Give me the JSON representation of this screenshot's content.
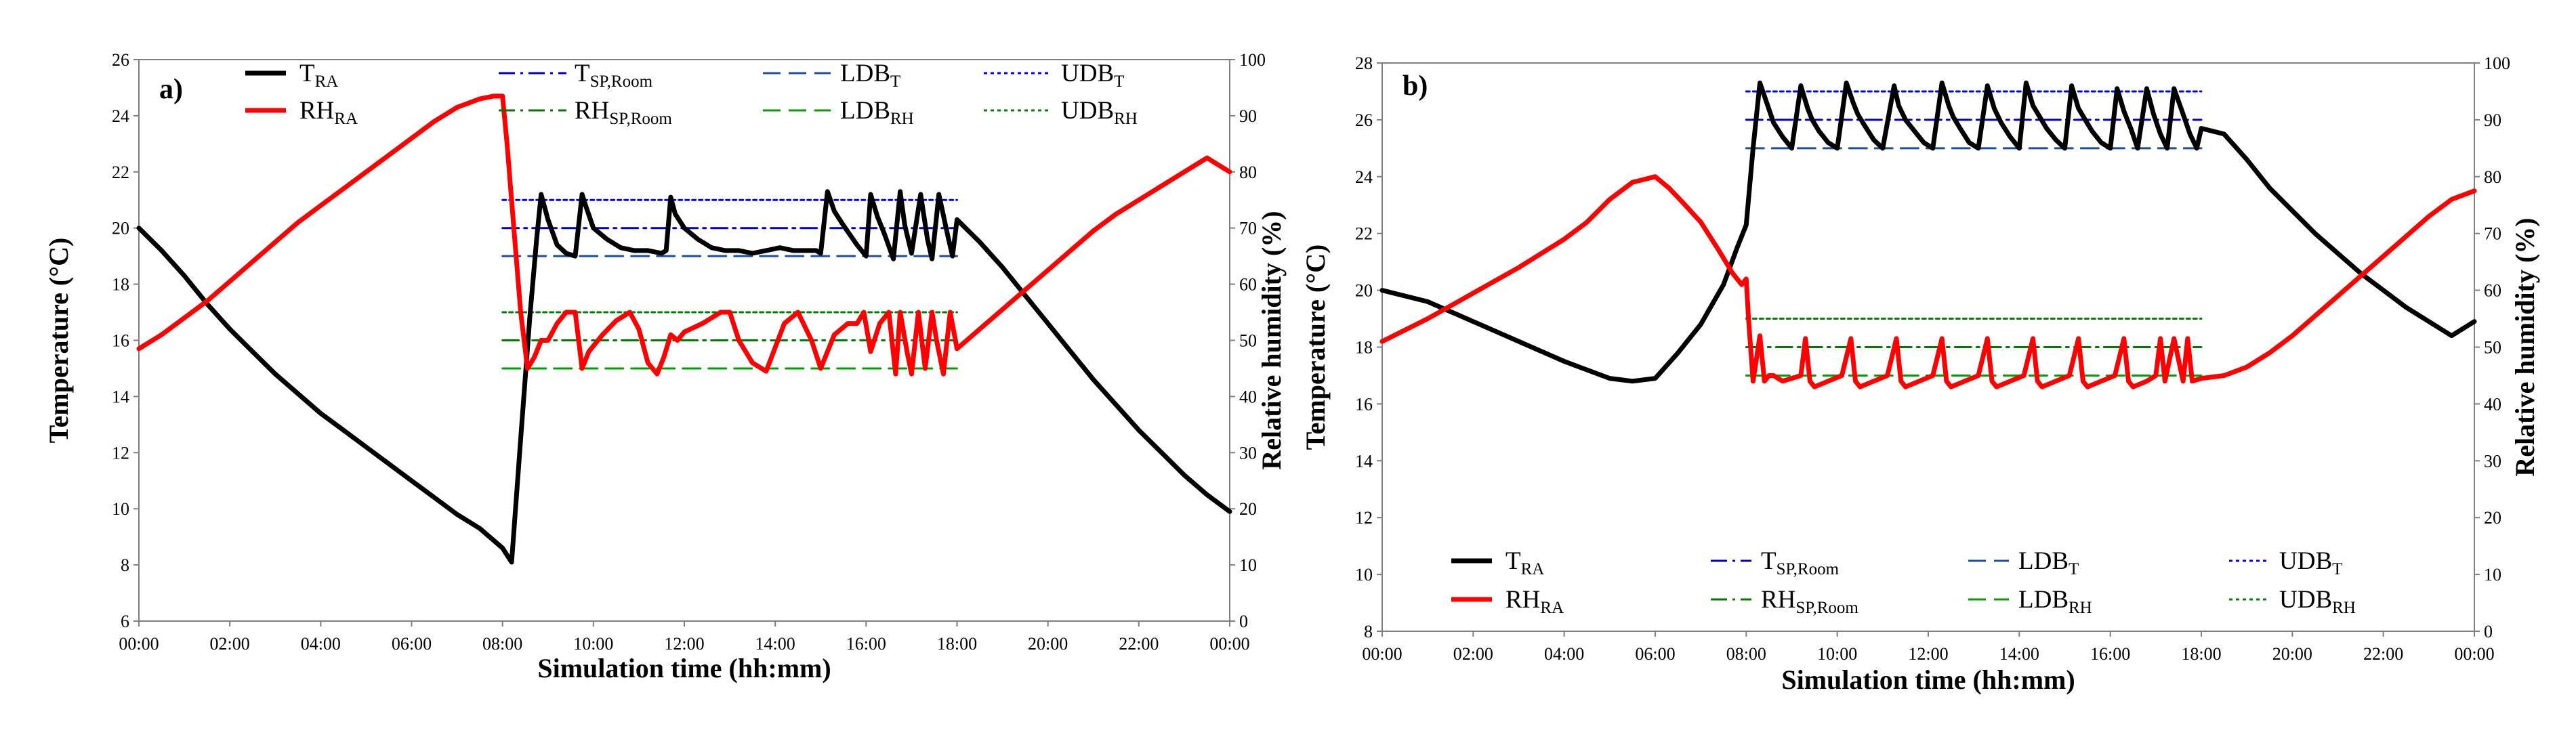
{
  "chart_data": [
    {
      "type": "line",
      "panel_label": "a)",
      "xlabel": "Simulation time (hh:mm)",
      "ylabel_left": "Temperature (°C)",
      "ylabel_right": "Relative humidity (%)",
      "xlim": [
        0,
        24
      ],
      "ylim_left": [
        6,
        26
      ],
      "ylim_right": [
        0,
        100
      ],
      "xticks": [
        0,
        2,
        4,
        6,
        8,
        10,
        12,
        14,
        16,
        18,
        20,
        22,
        24
      ],
      "xtick_labels": [
        "00:00",
        "02:00",
        "04:00",
        "06:00",
        "08:00",
        "10:00",
        "12:00",
        "14:00",
        "16:00",
        "18:00",
        "20:00",
        "22:00",
        "00:00"
      ],
      "yticks_left": [
        6,
        8,
        10,
        12,
        14,
        16,
        18,
        20,
        22,
        24,
        26
      ],
      "yticks_right": [
        0,
        10,
        20,
        30,
        40,
        50,
        60,
        70,
        80,
        90,
        100
      ],
      "grid": false,
      "legend": [
        {
          "key": "T_RA",
          "base": "T",
          "sub": "RA"
        },
        {
          "key": "RH_RA",
          "base": "RH",
          "sub": "RA"
        },
        {
          "key": "T_SP",
          "base": "T",
          "sub": "SP,Room"
        },
        {
          "key": "RH_SP",
          "base": "RH",
          "sub": "SP,Room"
        },
        {
          "key": "LDB_T",
          "base": "LDB",
          "sub": "T"
        },
        {
          "key": "LDB_RH",
          "base": "LDB",
          "sub": "RH"
        },
        {
          "key": "UDB_T",
          "base": "UDB",
          "sub": "T"
        },
        {
          "key": "UDB_RH",
          "base": "UDB",
          "sub": "RH"
        }
      ],
      "series": [
        {
          "name": "T_RA",
          "axis": "left",
          "color": "#000000",
          "x": [
            0,
            0.5,
            1,
            1.5,
            2,
            2.5,
            3,
            3.5,
            4,
            4.5,
            5,
            5.5,
            6,
            6.5,
            7,
            7.5,
            8,
            8.2,
            8.4,
            8.6,
            8.75,
            8.85,
            9.0,
            9.2,
            9.4,
            9.6,
            9.75,
            9.85,
            10.0,
            10.3,
            10.6,
            10.9,
            11.2,
            11.5,
            11.6,
            11.7,
            11.8,
            12.0,
            12.3,
            12.6,
            12.9,
            13.2,
            13.5,
            13.8,
            14.1,
            14.4,
            14.7,
            14.9,
            15.0,
            15.15,
            15.3,
            15.5,
            15.8,
            16.0,
            16.1,
            16.25,
            16.4,
            16.6,
            16.75,
            16.85,
            17.0,
            17.2,
            17.35,
            17.45,
            17.6,
            17.8,
            17.9,
            18.0,
            18.5,
            19,
            19.5,
            20,
            20.5,
            21,
            21.5,
            22,
            22.5,
            23,
            23.5,
            24
          ],
          "y": [
            20,
            19.2,
            18.3,
            17.3,
            16.4,
            15.6,
            14.8,
            14.1,
            13.4,
            12.8,
            12.2,
            11.6,
            11.0,
            10.4,
            9.8,
            9.3,
            8.6,
            8.1,
            12.5,
            16.8,
            19.6,
            21.2,
            20.3,
            19.4,
            19.1,
            19.0,
            21.2,
            20.7,
            20.0,
            19.6,
            19.3,
            19.2,
            19.2,
            19.1,
            19.2,
            21.1,
            20.5,
            20.0,
            19.6,
            19.3,
            19.2,
            19.2,
            19.1,
            19.2,
            19.3,
            19.2,
            19.2,
            19.2,
            19.1,
            21.3,
            20.6,
            20.1,
            19.4,
            19.0,
            21.2,
            20.4,
            19.8,
            18.9,
            21.3,
            20.1,
            19.1,
            21.2,
            19.6,
            18.9,
            21.2,
            19.7,
            19.0,
            20.3,
            19.5,
            18.6,
            17.6,
            16.6,
            15.6,
            14.6,
            13.7,
            12.8,
            12.0,
            11.2,
            10.5,
            9.9
          ]
        },
        {
          "name": "RH_RA",
          "axis": "right",
          "color": "#ff0000",
          "x": [
            0,
            0.5,
            1,
            1.5,
            2,
            2.5,
            3,
            3.5,
            4,
            4.5,
            5,
            5.5,
            6,
            6.5,
            7,
            7.5,
            7.8,
            8,
            8.1,
            8.25,
            8.4,
            8.55,
            8.7,
            8.85,
            9.0,
            9.2,
            9.4,
            9.6,
            9.75,
            9.9,
            10.2,
            10.5,
            10.8,
            11.0,
            11.2,
            11.4,
            11.55,
            11.7,
            11.85,
            12.0,
            12.4,
            12.8,
            13.0,
            13.2,
            13.5,
            13.8,
            14.2,
            14.5,
            14.8,
            15.0,
            15.3,
            15.6,
            15.8,
            15.95,
            16.1,
            16.3,
            16.5,
            16.65,
            16.75,
            16.9,
            17.0,
            17.15,
            17.3,
            17.45,
            17.55,
            17.7,
            17.85,
            18.0,
            18.5,
            19,
            19.5,
            20,
            20.5,
            21,
            21.5,
            22,
            22.5,
            23,
            23.5,
            24
          ],
          "y": [
            48.5,
            51,
            54,
            57,
            60.5,
            64,
            67.5,
            71,
            74,
            77,
            80,
            83,
            86,
            89,
            91.5,
            93,
            93.5,
            93.5,
            85,
            70,
            55,
            45,
            47,
            50,
            50,
            53,
            55,
            55,
            45,
            48,
            51,
            53.5,
            55,
            52,
            46,
            44,
            47,
            51,
            50,
            51.5,
            53,
            55,
            55,
            50,
            46,
            44.5,
            53,
            55,
            50,
            45,
            51,
            53,
            53,
            55,
            48,
            53,
            55,
            44,
            55,
            48,
            44,
            55,
            45,
            55,
            50,
            44,
            55,
            48.5,
            52,
            55.5,
            59,
            62.5,
            66,
            69.5,
            72.5,
            75,
            77.5,
            80,
            82.5,
            80
          ]
        },
        {
          "name": "T_SP",
          "axis": "left",
          "color": "#0000cc",
          "dash": "dashdot",
          "x": [
            8,
            18
          ],
          "y": [
            20,
            20
          ]
        },
        {
          "name": "LDB_T",
          "axis": "left",
          "color": "#1f4e9e",
          "dash": "dash",
          "x": [
            8,
            18
          ],
          "y": [
            19,
            19
          ]
        },
        {
          "name": "UDB_T",
          "axis": "left",
          "color": "#0000ff",
          "dash": "dot",
          "x": [
            8,
            18
          ],
          "y": [
            21,
            21
          ]
        },
        {
          "name": "RH_SP",
          "axis": "right",
          "color": "#007a00",
          "dash": "dashdot",
          "x": [
            8,
            18
          ],
          "y": [
            50,
            50
          ]
        },
        {
          "name": "LDB_RH",
          "axis": "right",
          "color": "#00a000",
          "dash": "dash",
          "x": [
            8,
            18
          ],
          "y": [
            45,
            45
          ]
        },
        {
          "name": "UDB_RH",
          "axis": "right",
          "color": "#008000",
          "dash": "dot",
          "x": [
            8,
            18
          ],
          "y": [
            55,
            55
          ]
        }
      ]
    },
    {
      "type": "line",
      "panel_label": "b)",
      "xlabel": "Simulation time (hh:mm)",
      "ylabel_left": "Temperature (°C)",
      "ylabel_right": "Relative humidity (%)",
      "xlim": [
        0,
        24
      ],
      "ylim_left": [
        8,
        28
      ],
      "ylim_right": [
        0,
        100
      ],
      "xticks": [
        0,
        2,
        4,
        6,
        8,
        10,
        12,
        14,
        16,
        18,
        20,
        22,
        24
      ],
      "xtick_labels": [
        "00:00",
        "02:00",
        "04:00",
        "06:00",
        "08:00",
        "10:00",
        "12:00",
        "14:00",
        "16:00",
        "18:00",
        "20:00",
        "22:00",
        "00:00"
      ],
      "yticks_left": [
        8,
        10,
        12,
        14,
        16,
        18,
        20,
        22,
        24,
        26,
        28
      ],
      "yticks_right": [
        0,
        10,
        20,
        30,
        40,
        50,
        60,
        70,
        80,
        90,
        100
      ],
      "grid": false,
      "legend": [
        {
          "key": "T_RA",
          "base": "T",
          "sub": "RA"
        },
        {
          "key": "RH_RA",
          "base": "RH",
          "sub": "RA"
        },
        {
          "key": "T_SP",
          "base": "T",
          "sub": "SP,Room"
        },
        {
          "key": "RH_SP",
          "base": "RH",
          "sub": "SP,Room"
        },
        {
          "key": "LDB_T",
          "base": "LDB",
          "sub": "T"
        },
        {
          "key": "LDB_RH",
          "base": "LDB",
          "sub": "RH"
        },
        {
          "key": "UDB_T",
          "base": "UDB",
          "sub": "T"
        },
        {
          "key": "UDB_RH",
          "base": "UDB",
          "sub": "RH"
        }
      ],
      "series": [
        {
          "name": "T_RA",
          "axis": "left",
          "color": "#000000",
          "x": [
            0,
            1,
            2,
            3,
            4,
            4.5,
            5,
            5.5,
            6,
            6.5,
            7,
            7.5,
            7.8,
            8,
            8.15,
            8.3,
            8.45,
            8.6,
            8.8,
            9.0,
            9.2,
            9.35,
            9.45,
            9.6,
            9.8,
            10.0,
            10.2,
            10.35,
            10.45,
            10.6,
            10.8,
            11.0,
            11.25,
            11.35,
            11.5,
            11.7,
            11.9,
            12.1,
            12.3,
            12.45,
            12.55,
            12.7,
            12.9,
            13.1,
            13.3,
            13.45,
            13.6,
            13.8,
            14.0,
            14.15,
            14.3,
            14.45,
            14.6,
            14.8,
            15.0,
            15.15,
            15.3,
            15.45,
            15.6,
            15.8,
            16.0,
            16.15,
            16.3,
            16.45,
            16.6,
            16.8,
            16.95,
            17.1,
            17.25,
            17.4,
            17.6,
            17.75,
            17.9,
            18.0,
            18.5,
            19,
            19.5,
            20,
            20.5,
            21,
            21.5,
            22,
            22.5,
            23,
            23.5,
            24
          ],
          "y": [
            20,
            19.6,
            18.9,
            18.2,
            17.5,
            17.2,
            16.9,
            16.8,
            16.9,
            17.8,
            18.8,
            20.2,
            21.5,
            22.3,
            25.0,
            27.3,
            26.6,
            25.9,
            25.4,
            25.0,
            27.2,
            26.4,
            26.0,
            25.6,
            25.2,
            25.0,
            27.3,
            26.6,
            26.2,
            25.8,
            25.3,
            25.0,
            27.2,
            26.5,
            26.0,
            25.6,
            25.2,
            25.0,
            27.3,
            26.5,
            26.1,
            25.7,
            25.2,
            25.0,
            27.2,
            26.4,
            25.9,
            25.4,
            25.0,
            27.3,
            26.5,
            26.1,
            25.7,
            25.3,
            25.0,
            27.2,
            26.4,
            26.0,
            25.6,
            25.2,
            25.0,
            27.1,
            26.3,
            25.7,
            25.0,
            27.1,
            26.2,
            25.5,
            25.0,
            27.1,
            26.2,
            25.5,
            25.0,
            25.7,
            25.5,
            24.6,
            23.6,
            22.8,
            22.0,
            21.3,
            20.6,
            20.0,
            19.4,
            18.9,
            18.4,
            18.9
          ]
        },
        {
          "name": "RH_RA",
          "axis": "right",
          "color": "#ff0000",
          "x": [
            0,
            1,
            2,
            3,
            4,
            4.5,
            5,
            5.5,
            6,
            6.3,
            6.6,
            7.0,
            7.4,
            7.7,
            7.9,
            8.0,
            8.05,
            8.15,
            8.3,
            8.4,
            8.5,
            8.6,
            8.8,
            9.0,
            9.2,
            9.3,
            9.4,
            9.5,
            9.8,
            10.1,
            10.3,
            10.4,
            10.5,
            10.8,
            11.1,
            11.3,
            11.4,
            11.5,
            11.8,
            12.1,
            12.3,
            12.4,
            12.5,
            12.8,
            13.1,
            13.3,
            13.4,
            13.5,
            13.8,
            14.1,
            14.3,
            14.4,
            14.5,
            14.8,
            15.1,
            15.3,
            15.4,
            15.5,
            15.8,
            16.1,
            16.3,
            16.4,
            16.5,
            16.8,
            17.0,
            17.1,
            17.2,
            17.4,
            17.6,
            17.7,
            17.8,
            18.0,
            18.5,
            19,
            19.5,
            20,
            20.5,
            21,
            21.5,
            22,
            22.5,
            23,
            23.5,
            24
          ],
          "y": [
            51,
            55,
            59.5,
            64,
            69,
            72,
            76,
            79,
            80,
            78,
            75.5,
            72,
            67,
            63,
            61,
            62,
            55,
            44,
            52,
            44,
            45,
            45,
            44,
            44.5,
            45,
            51.5,
            44,
            43,
            44,
            45,
            51.5,
            44,
            43,
            44,
            45,
            51.5,
            44,
            43,
            44,
            45,
            51.5,
            44,
            43,
            44,
            45,
            51.5,
            44,
            43,
            44,
            45,
            51.5,
            44,
            43,
            44,
            45,
            51.5,
            44,
            43,
            44,
            45,
            51.5,
            44,
            43,
            44,
            45,
            51.5,
            44,
            51.5,
            44,
            51.5,
            44,
            44.5,
            45,
            46.5,
            49,
            52,
            55.5,
            59,
            62.5,
            66,
            69.5,
            73,
            76,
            77.5
          ]
        },
        {
          "name": "T_SP",
          "axis": "left",
          "color": "#0000cc",
          "dash": "dashdot",
          "x": [
            8,
            18
          ],
          "y": [
            26,
            26
          ]
        },
        {
          "name": "LDB_T",
          "axis": "left",
          "color": "#1f4e9e",
          "dash": "dash",
          "x": [
            8,
            18
          ],
          "y": [
            25,
            25
          ]
        },
        {
          "name": "UDB_T",
          "axis": "left",
          "color": "#0000ff",
          "dash": "dot",
          "x": [
            8,
            18
          ],
          "y": [
            27,
            27
          ]
        },
        {
          "name": "RH_SP",
          "axis": "right",
          "color": "#007a00",
          "dash": "dashdot",
          "x": [
            8,
            18
          ],
          "y": [
            50,
            50
          ]
        },
        {
          "name": "LDB_RH",
          "axis": "right",
          "color": "#00a000",
          "dash": "dash",
          "x": [
            8,
            18
          ],
          "y": [
            45,
            45
          ]
        },
        {
          "name": "UDB_RH",
          "axis": "right",
          "color": "#008000",
          "dash": "dot",
          "x": [
            8,
            18
          ],
          "y": [
            55,
            55
          ]
        }
      ]
    }
  ]
}
